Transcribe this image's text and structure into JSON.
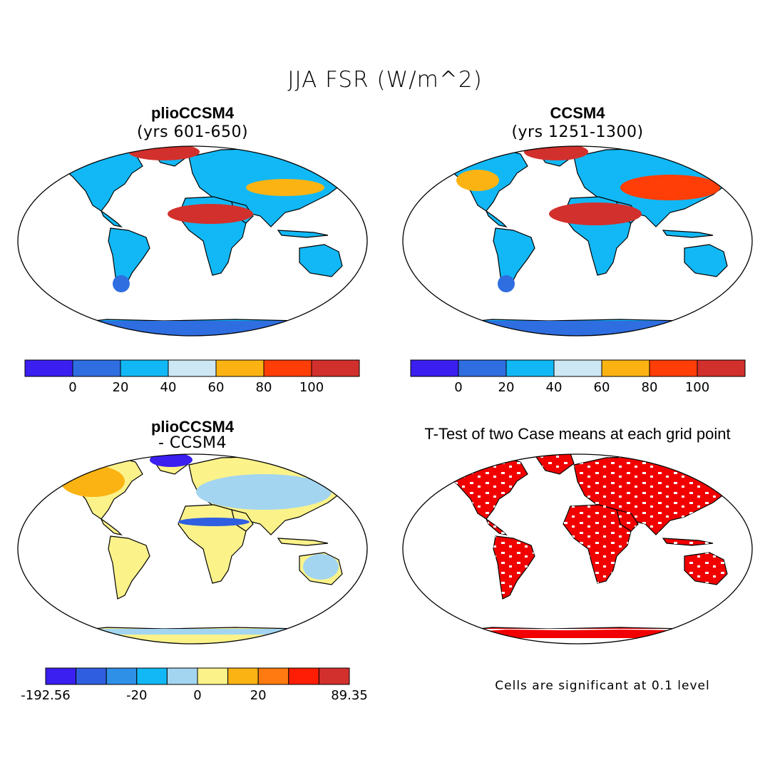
{
  "figure": {
    "title": "JJA FSR (W/m^2)"
  },
  "panels": {
    "top_left": {
      "title": "plioCCSM4",
      "subtitle": "(yrs 601-650)"
    },
    "top_right": {
      "title": "CCSM4",
      "subtitle": "(yrs 1251-1300)"
    },
    "bottom_left": {
      "title": "plioCCSM4",
      "subtitle": "- CCSM4"
    },
    "bottom_right": {
      "title": "T-Test of two Case means at each grid point"
    }
  },
  "colorbars": {
    "absolute": {
      "colors": [
        "#3a1ff0",
        "#2f6ee0",
        "#12b8f5",
        "#cde8f4",
        "#fbb313",
        "#ff3d07",
        "#d2302c"
      ],
      "labels": [
        "0",
        "20",
        "40",
        "60",
        "80",
        "100"
      ]
    },
    "difference": {
      "colors": [
        "#3a1ff0",
        "#2f5fe0",
        "#2f90e8",
        "#12b8f5",
        "#a3d5f0",
        "#fbf28a",
        "#fbb313",
        "#ff7a10",
        "#ff1e05",
        "#d2302c"
      ],
      "labels": [
        "-192.56",
        "-20",
        "0",
        "20",
        "89.35"
      ]
    }
  },
  "significance_note": "Cells are significant at 0.1 level",
  "map_colors": {
    "ocean": "#ffffff",
    "significant": "#f20000"
  }
}
